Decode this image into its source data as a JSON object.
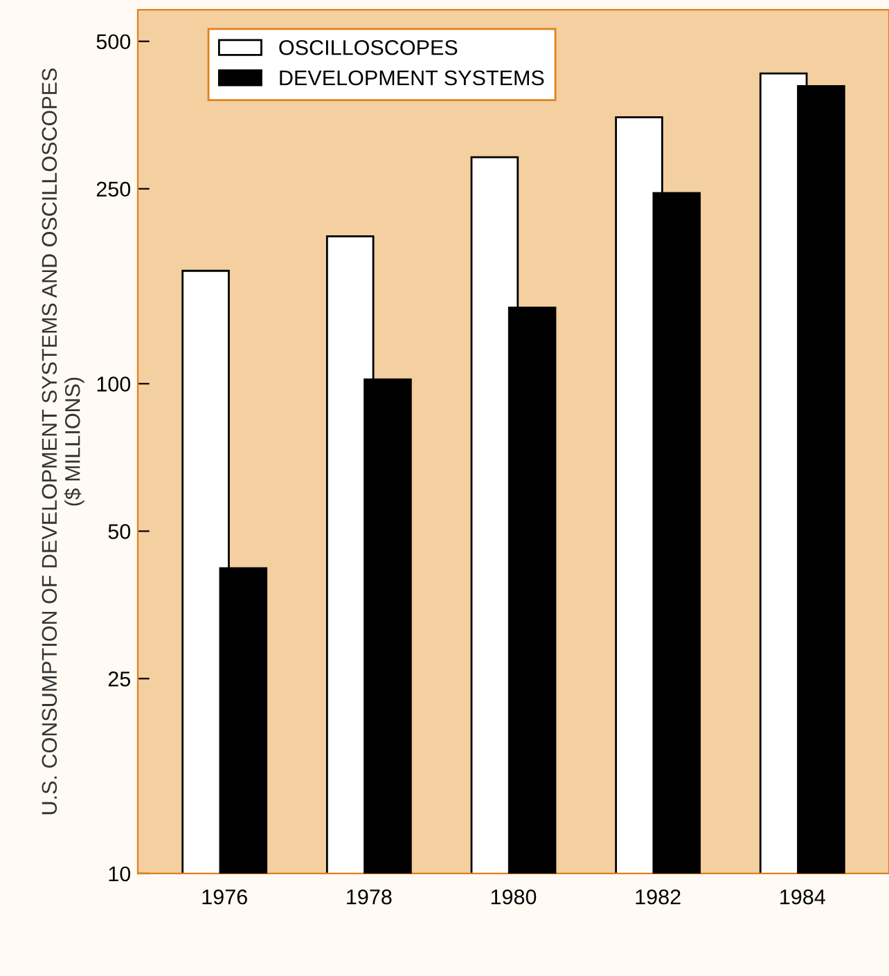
{
  "chart_data": {
    "type": "bar",
    "ylabel": "U.S. CONSUMPTION OF DEVELOPMENT SYSTEMS AND OSCILLOSCOPES\n($ MILLIONS)",
    "categories": [
      "1976",
      "1978",
      "1980",
      "1982",
      "1984"
    ],
    "series": [
      {
        "name": "OSCILLOSCOPES",
        "color": "#ffffff",
        "values": [
          170,
          200,
          290,
          350,
          430
        ]
      },
      {
        "name": "DEVELOPMENT SYSTEMS",
        "color": "#000000",
        "values": [
          42,
          102,
          143,
          245,
          405
        ]
      }
    ],
    "log": "y",
    "ylim": [
      10,
      580
    ],
    "yticks": [
      10,
      25,
      50,
      100,
      250,
      500
    ],
    "legend": "top left",
    "grid": false
  }
}
